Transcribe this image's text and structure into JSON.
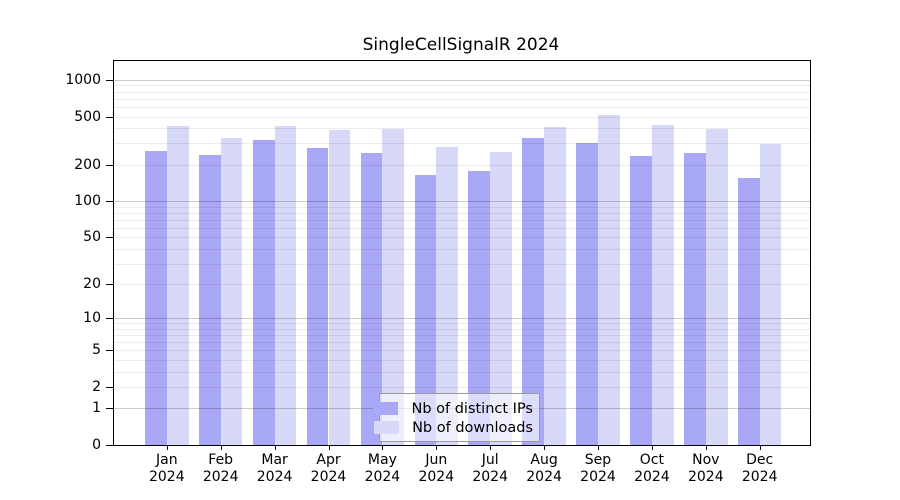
{
  "title": "SingleCellSignalR 2024",
  "chart_data": {
    "type": "bar",
    "title": "SingleCellSignalR 2024",
    "categories": [
      "Jan 2024",
      "Feb 2024",
      "Mar 2024",
      "Apr 2024",
      "May 2024",
      "Jun 2024",
      "Jul 2024",
      "Aug 2024",
      "Sep 2024",
      "Oct 2024",
      "Nov 2024",
      "Dec 2024"
    ],
    "months": [
      "Jan",
      "Feb",
      "Mar",
      "Apr",
      "May",
      "Jun",
      "Jul",
      "Aug",
      "Sep",
      "Oct",
      "Nov",
      "Dec"
    ],
    "year": "2024",
    "series": [
      {
        "name": "Nb of distinct IPs",
        "color": "#a8a8f7",
        "values": [
          258,
          241,
          318,
          277,
          252,
          164,
          176,
          330,
          300,
          237,
          250,
          154
        ]
      },
      {
        "name": "Nb of downloads",
        "color": "#d8d8f8",
        "values": [
          417,
          335,
          420,
          386,
          397,
          281,
          256,
          413,
          516,
          427,
          397,
          295
        ]
      }
    ],
    "y_ticks": [
      0,
      1,
      2,
      5,
      10,
      20,
      50,
      100,
      200,
      500,
      1000
    ],
    "y_scale": "log10(1+value)",
    "ylim": [
      0,
      1430
    ],
    "xlabel": "",
    "ylabel": "",
    "grid": true,
    "legend": {
      "entries": [
        "Nb of distinct IPs",
        "Nb of downloads"
      ],
      "position": "bottom-center-inside"
    }
  },
  "colors": {
    "distinct_ips": "#a8a8f7",
    "downloads": "#d8d8f8",
    "axis": "#000000",
    "grid_major": "#cccccc",
    "grid_minor": "#ebebeb",
    "background": "#ffffff",
    "legend_border": "#9a9a9a"
  }
}
